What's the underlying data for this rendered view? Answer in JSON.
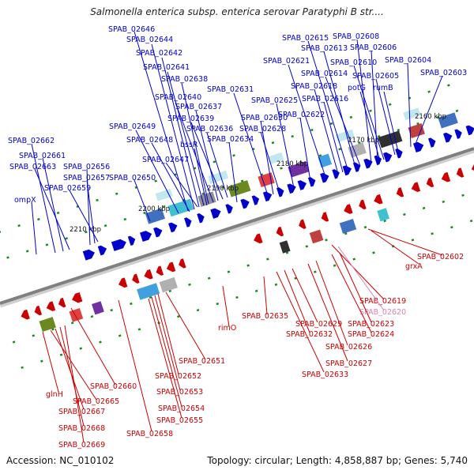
{
  "title": "Salmonella enterica subsp. enterica serovar Paratyphi B str....",
  "footer": {
    "accession": "Accession: NC_010102",
    "summary": "Topology: circular; Length: 4,858,887 bp; Genes: 5,740"
  },
  "colors": {
    "forward": "#0000cc",
    "reverse": "#cc0000",
    "pseudo": "#e080b0",
    "backbone": "#808080"
  },
  "ticks": [
    "2160 kbp",
    "2170 kbp",
    "2180 kbp",
    "2190 kbp",
    "2200 kbp",
    "2210 kbp"
  ],
  "forward_labels": [
    "SPAB_02646",
    "SPAB_02644",
    "SPAB_02642",
    "SPAB_02641",
    "SPAB_02638",
    "SPAB_02640",
    "SPAB_02637",
    "SPAB_02639",
    "SPAB_02636",
    "SPAB_02649",
    "SPAB_02648",
    "bssR",
    "SPAB_02634",
    "SPAB_02647",
    "SPAB_02631",
    "SPAB_02630",
    "SPAB_02628",
    "SPAB_02625",
    "SPAB_02622",
    "SPAB_02621",
    "SPAB_02618",
    "SPAB_02616",
    "SPAB_02615",
    "SPAB_02613",
    "SPAB_02614",
    "SPAB_02608",
    "SPAB_02606",
    "SPAB_02610",
    "potG",
    "SPAB_02605",
    "rumB",
    "SPAB_02604",
    "SPAB_02603",
    "SPAB_02662",
    "SPAB_02661",
    "SPAB_02663",
    "SPAB_02656",
    "SPAB_02657",
    "SPAB_02659",
    "SPAB_02650",
    "ompX"
  ],
  "reverse_labels": [
    "SPAB_02602",
    "grxA",
    "SPAB_02619",
    "SPAB_02620",
    "SPAB_02623",
    "SPAB_02624",
    "SPAB_02626",
    "SPAB_02627",
    "SPAB_02629",
    "SPAB_02632",
    "SPAB_02633",
    "SPAB_02635",
    "rimO",
    "SPAB_02651",
    "SPAB_02652",
    "SPAB_02653",
    "SPAB_02654",
    "SPAB_02655",
    "SPAB_02658",
    "SPAB_02660",
    "glnH",
    "SPAB_02665",
    "SPAB_02667",
    "SPAB_02668",
    "SPAB_02669"
  ]
}
